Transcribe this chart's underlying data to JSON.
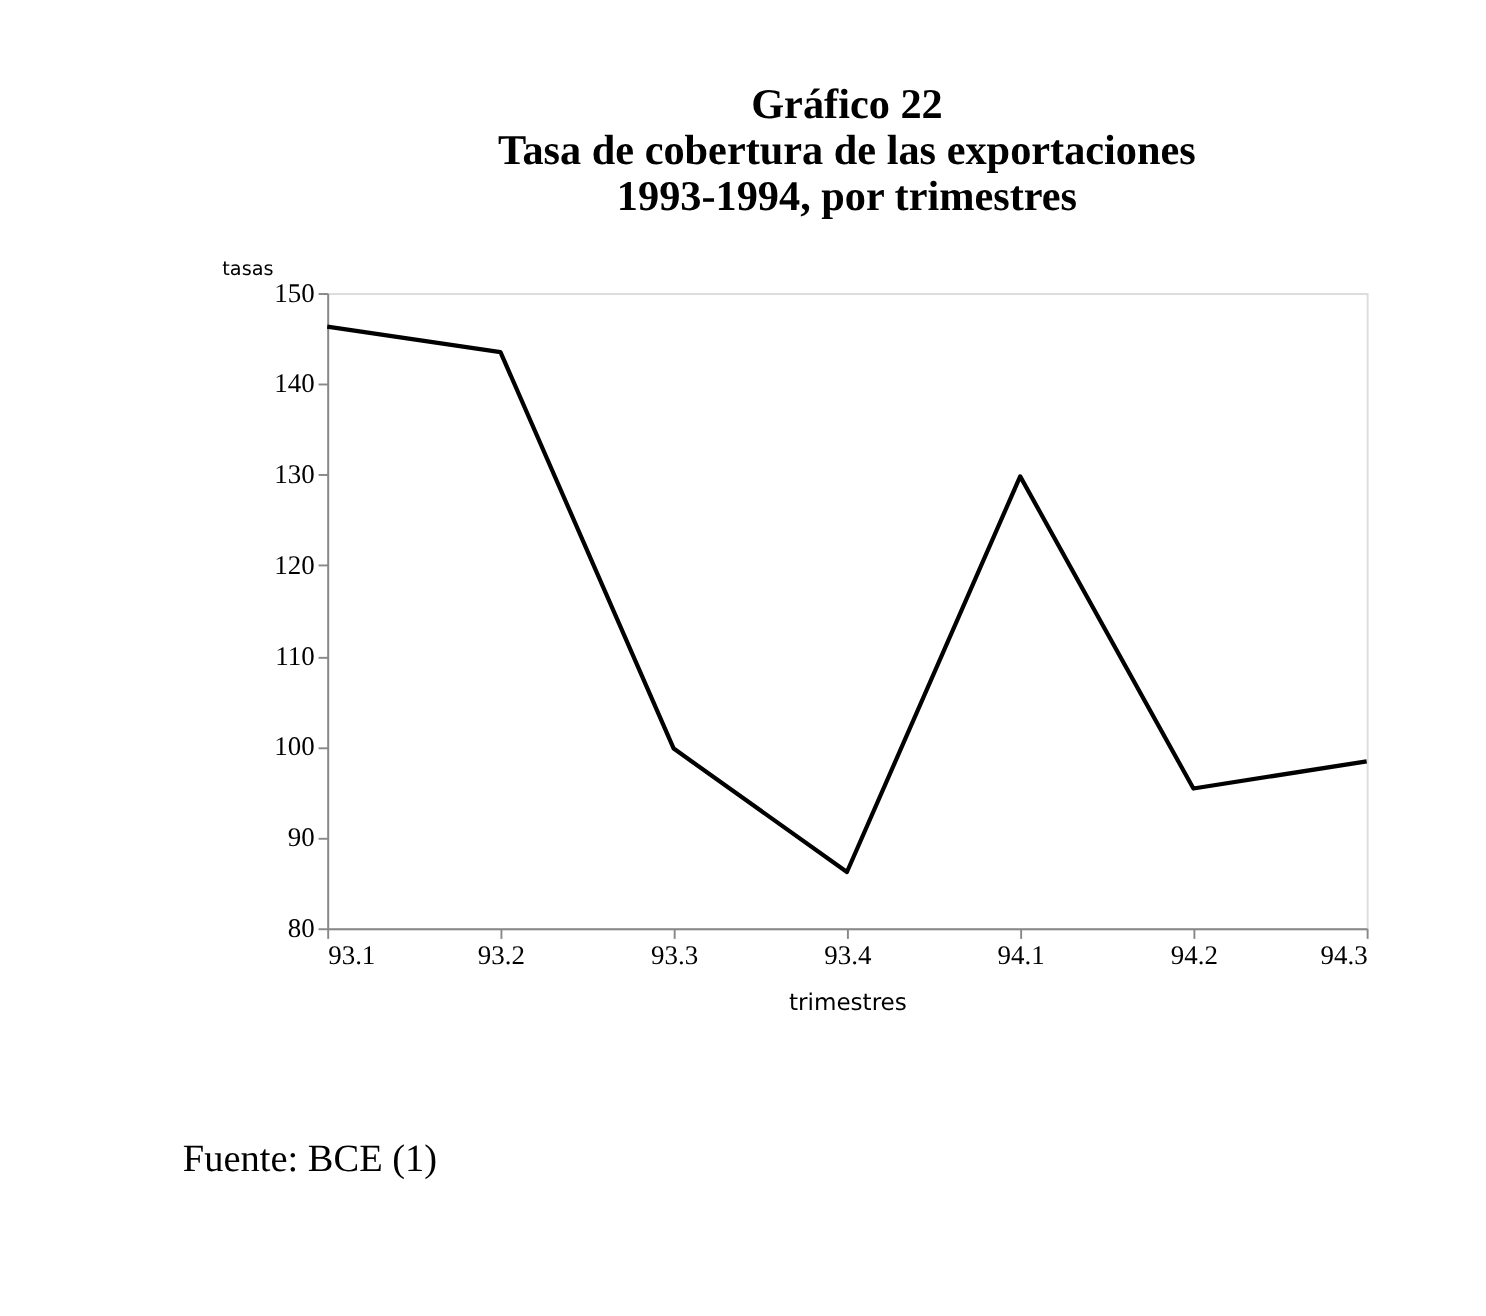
{
  "chart_data": {
    "type": "line",
    "title": [
      "Gráfico 22",
      "Tasa de cobertura de las exportaciones",
      "1993-1994, por trimestres"
    ],
    "categories": [
      "93.1",
      "93.2",
      "93.3",
      "93.4",
      "94.1",
      "94.2",
      "94.3"
    ],
    "series": [
      {
        "color": "#000000",
        "values": [
          146.3,
          143.5,
          99.8,
          86.2,
          129.8,
          95.4,
          98.4
        ]
      }
    ],
    "ylim": [
      80,
      150
    ],
    "yticks": [
      80,
      90,
      100,
      110,
      120,
      130,
      140,
      150
    ],
    "xlabel": "trimestres",
    "ylabel": "tasas",
    "grid": false,
    "marker": "none",
    "line_style": "solid",
    "annotations": [
      "Fuente: BCE (1)"
    ]
  }
}
